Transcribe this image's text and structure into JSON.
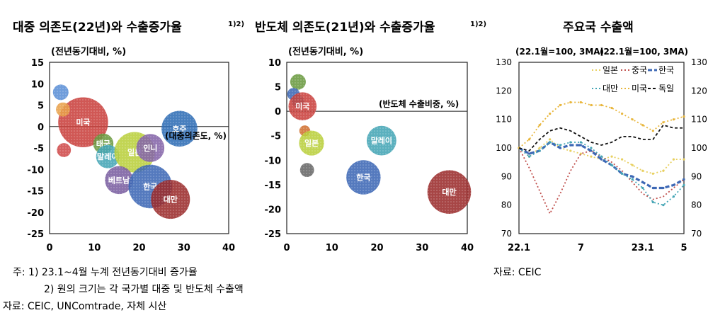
{
  "titles": {
    "chart1": "대중 의존도(22년)와 수출증가율",
    "chart1_sup": "1)2)",
    "chart2": "반도체 의존도(21년)와 수출증가율",
    "chart2_sup": "1)2)",
    "chart3": "주요국 수출액"
  },
  "notes": {
    "note1": "주: 1) 23.1~4월 누계 전년동기대비 증가율",
    "note2": "2) 원의 크기는 각 국가별 대중 및 반도체 수출액",
    "source1": "자료: CEIC, UNComtrade, 자체 시산",
    "source3": "자료: CEIC"
  },
  "colors": {
    "usa": "#c9413d",
    "china": "#c0504d",
    "japan": "#b9cf3c",
    "korea": "#3d68b5",
    "taiwan": "#9b2c2c",
    "australia": "#2f6db5",
    "vietnam": "#7a5ea0",
    "indonesia": "#8464a8",
    "thailand": "#6a9a40",
    "malaysia": "#44a5b5",
    "germany": "#111111",
    "us_line": "#e8b63c",
    "jp_line": "#e8d060"
  },
  "chart_data": [
    {
      "type": "scatter",
      "title": "대중 의존도(22년)와 수출증가율",
      "ylabel": "(전년동기대비, %)",
      "xlabel": "(대중의존도, %)",
      "xlim": [
        0,
        40
      ],
      "ylim": [
        -25,
        15
      ],
      "xticks": [
        0,
        10,
        20,
        30,
        40
      ],
      "yticks": [
        15,
        10,
        5,
        0,
        -5,
        -10,
        -15,
        -20,
        -25
      ],
      "points": [
        {
          "name": "미국",
          "x": 7.5,
          "y": 1,
          "size": 3.2,
          "color": "#c9413d",
          "label": "미국"
        },
        {
          "name": "",
          "x": 2.5,
          "y": 8,
          "size": 1.0,
          "color": "#5b8fd6",
          "label": ""
        },
        {
          "name": "",
          "x": 3,
          "y": 4,
          "size": 0.9,
          "color": "#e8a04a",
          "label": ""
        },
        {
          "name": "",
          "x": 3.2,
          "y": -5.5,
          "size": 0.9,
          "color": "#cf4a4a",
          "label": ""
        },
        {
          "name": "태국",
          "x": 12,
          "y": -4,
          "size": 1.3,
          "color": "#6a9a40",
          "label": "태국"
        },
        {
          "name": "말레이",
          "x": 13,
          "y": -7,
          "size": 1.5,
          "color": "#44a5b5",
          "label": "말레이"
        },
        {
          "name": "일본",
          "x": 19,
          "y": -6,
          "size": 2.6,
          "color": "#b9cf3c",
          "label": "일본"
        },
        {
          "name": "인니",
          "x": 22.5,
          "y": -5,
          "size": 1.8,
          "color": "#8464a8",
          "label": "인니"
        },
        {
          "name": "베트남",
          "x": 15.5,
          "y": -12.5,
          "size": 1.8,
          "color": "#7a5ea0",
          "label": "베트남"
        },
        {
          "name": "한국",
          "x": 22.5,
          "y": -14,
          "size": 2.8,
          "color": "#3d68b5",
          "label": "한국"
        },
        {
          "name": "대만",
          "x": 27,
          "y": -17,
          "size": 2.5,
          "color": "#9b2c2c",
          "label": "대만"
        },
        {
          "name": "호주",
          "x": 29,
          "y": -0.5,
          "size": 2.3,
          "color": "#2f6db5",
          "label": "호주"
        }
      ]
    },
    {
      "type": "scatter",
      "title": "반도체 의존도(21년)와 수출증가율",
      "ylabel": "(전년동기대비, %)",
      "xlabel": "(반도체 수출비중, %)",
      "xlim": [
        0,
        40
      ],
      "ylim": [
        -25,
        10
      ],
      "xticks": [
        0,
        10,
        20,
        30,
        40
      ],
      "yticks": [
        10,
        5,
        0,
        -5,
        -10,
        -15,
        -20,
        -25
      ],
      "points": [
        {
          "name": "",
          "x": 2.5,
          "y": 6,
          "size": 1.0,
          "color": "#6a9a40",
          "label": ""
        },
        {
          "name": "",
          "x": 1.5,
          "y": 3.5,
          "size": 0.8,
          "color": "#3d68b5",
          "label": ""
        },
        {
          "name": "",
          "x": 2.5,
          "y": 2,
          "size": 0.8,
          "color": "#2f8fb5",
          "label": ""
        },
        {
          "name": "미국",
          "x": 3.5,
          "y": 1,
          "size": 1.8,
          "color": "#c9413d",
          "label": "미국"
        },
        {
          "name": "",
          "x": 4,
          "y": -4,
          "size": 0.7,
          "color": "#d07030",
          "label": ""
        },
        {
          "name": "일본",
          "x": 5.5,
          "y": -6.5,
          "size": 1.6,
          "color": "#b9cf3c",
          "label": "일본"
        },
        {
          "name": "",
          "x": 4.5,
          "y": -12,
          "size": 0.9,
          "color": "#666666",
          "label": ""
        },
        {
          "name": "말레이",
          "x": 21,
          "y": -6,
          "size": 1.9,
          "color": "#44a5b5",
          "label": "말레이"
        },
        {
          "name": "한국",
          "x": 17,
          "y": -13.5,
          "size": 2.2,
          "color": "#3d68b5",
          "label": "한국"
        },
        {
          "name": "대만",
          "x": 36,
          "y": -16.5,
          "size": 2.8,
          "color": "#9b2c2c",
          "label": "대만"
        }
      ]
    },
    {
      "type": "line",
      "title": "주요국 수출액",
      "ylabel_left": "(22.1월=100, 3MA)",
      "ylabel_right": "(22.1월=100, 3MA)",
      "ylim": [
        70,
        130
      ],
      "yticks": [
        130,
        120,
        110,
        100,
        90,
        80,
        70
      ],
      "x": [
        "22.1",
        "22.2",
        "22.3",
        "22.4",
        "22.5",
        "22.6",
        "22.7",
        "22.8",
        "22.9",
        "22.10",
        "22.11",
        "22.12",
        "23.1",
        "23.2",
        "23.3",
        "23.4",
        "23.5"
      ],
      "xtick_labels": [
        {
          "index": 0,
          "label": "22.1"
        },
        {
          "index": 6,
          "label": "7"
        },
        {
          "index": 12,
          "label": "23.1"
        },
        {
          "index": 16,
          "label": "5"
        }
      ],
      "series": [
        {
          "name": "일본",
          "color": "#e8d060",
          "dash": "2,3",
          "values": [
            100,
            97,
            100,
            103,
            100,
            99,
            98,
            97,
            96,
            97,
            96,
            94,
            92,
            91,
            92,
            96,
            96
          ]
        },
        {
          "name": "중국",
          "color": "#c0504d",
          "dash": "2,3",
          "values": [
            100,
            93,
            85,
            77,
            84,
            92,
            98,
            99,
            97,
            95,
            92,
            88,
            84,
            82,
            83,
            86,
            89
          ]
        },
        {
          "name": "한국",
          "color": "#3d68b5",
          "dash": "6,3",
          "values": [
            100,
            98,
            99,
            102,
            100,
            101,
            101,
            99,
            96,
            94,
            91,
            90,
            88,
            86,
            86,
            87,
            89
          ]
        },
        {
          "name": "대만",
          "color": "#44a5b5",
          "dash": "2,3",
          "values": [
            100,
            97,
            99,
            102,
            101,
            102,
            102,
            100,
            97,
            94,
            91,
            89,
            86,
            81,
            80,
            83,
            87
          ]
        },
        {
          "name": "미국",
          "color": "#e8b63c",
          "dash": "2,3",
          "values": [
            100,
            103,
            108,
            112,
            115,
            116,
            116,
            115,
            115,
            114,
            112,
            110,
            108,
            106,
            109,
            110,
            111
          ]
        },
        {
          "name": "독일",
          "color": "#111111",
          "dash": "4,3",
          "values": [
            100,
            99,
            103,
            106,
            107,
            106,
            104,
            102,
            101,
            102,
            104,
            104,
            103,
            103,
            108,
            107,
            107
          ]
        }
      ]
    }
  ]
}
